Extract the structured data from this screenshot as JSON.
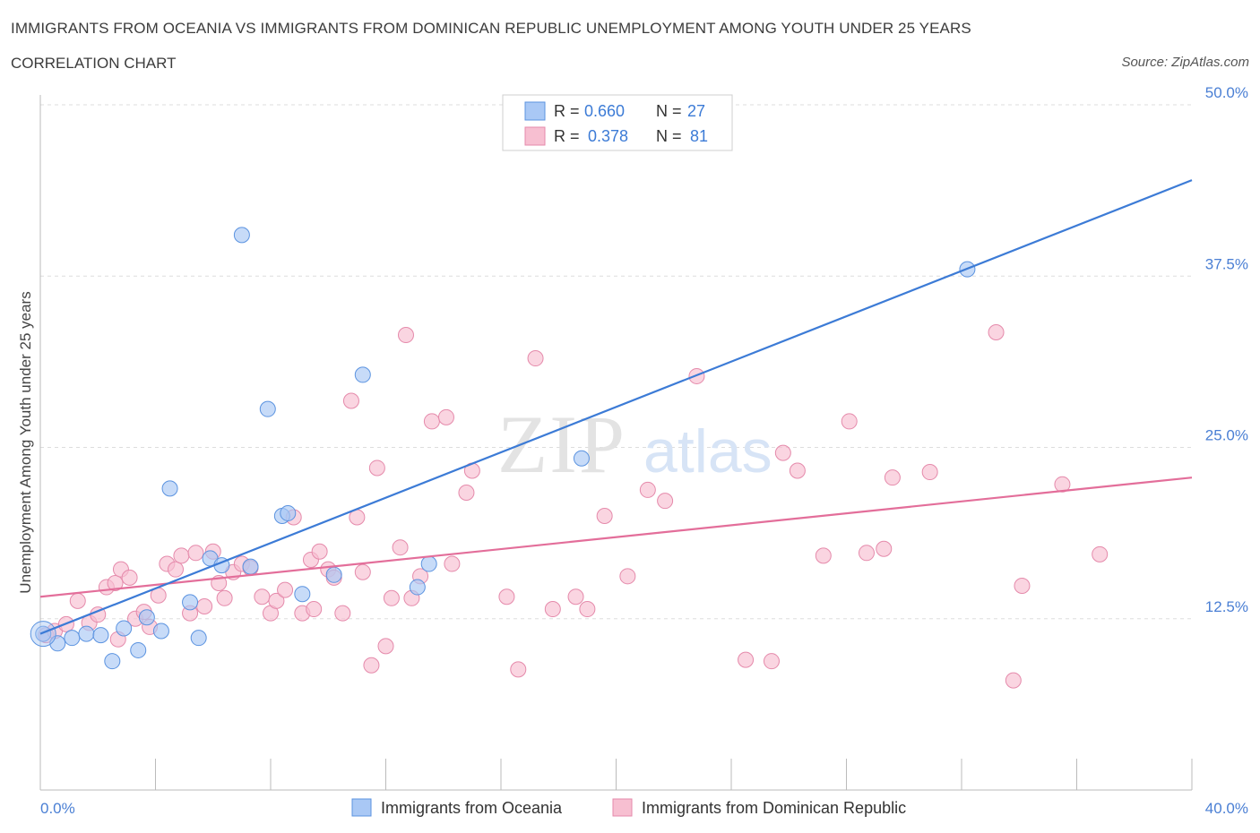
{
  "header": {
    "title": "IMMIGRANTS FROM OCEANIA VS IMMIGRANTS FROM DOMINICAN REPUBLIC UNEMPLOYMENT AMONG YOUTH UNDER 25 YEARS",
    "subtitle": "CORRELATION CHART",
    "source": "Source: ZipAtlas.com"
  },
  "watermark": {
    "zip": "ZIP",
    "atlas": "atlas"
  },
  "legend": {
    "r_label": "R =",
    "n_label": "N =",
    "rows": [
      {
        "r": "0.660",
        "n": "27"
      },
      {
        "r": "0.378",
        "n": "81"
      }
    ]
  },
  "colors": {
    "blue_fill": "#a9c8f5",
    "blue_stroke": "#5b93e0",
    "blue_line": "#3c7bd6",
    "pink_fill": "#f7bfd1",
    "pink_stroke": "#e58aab",
    "pink_line": "#e36e9a",
    "axis_text": "#4a7fd4",
    "grid": "#dddddd"
  },
  "chart_data": {
    "type": "scatter",
    "title": "IMMIGRANTS FROM OCEANIA VS IMMIGRANTS FROM DOMINICAN REPUBLIC UNEMPLOYMENT AMONG YOUTH UNDER 25 YEARS",
    "xlabel": "",
    "ylabel": "Unemployment Among Youth under 25 years",
    "xlim": [
      0,
      40
    ],
    "ylim": [
      0,
      50
    ],
    "x_tick_labels": [
      "0.0%",
      "40.0%"
    ],
    "y_ticks": [
      12.5,
      25,
      37.5,
      50
    ],
    "y_tick_labels": [
      "12.5%",
      "25.0%",
      "37.5%",
      "50.0%"
    ],
    "grid": true,
    "legend_position": "top-center",
    "series": [
      {
        "name": "Immigrants from Oceania",
        "color": "blue",
        "r": 0.66,
        "n": 27,
        "trend": [
          [
            0,
            11.4
          ],
          [
            40,
            44.5
          ]
        ],
        "points": [
          [
            0.1,
            11.4
          ],
          [
            0.6,
            10.7
          ],
          [
            1.1,
            11.1
          ],
          [
            1.6,
            11.4
          ],
          [
            2.1,
            11.3
          ],
          [
            2.5,
            9.4
          ],
          [
            2.9,
            11.8
          ],
          [
            3.4,
            10.2
          ],
          [
            3.7,
            12.6
          ],
          [
            4.2,
            11.6
          ],
          [
            4.5,
            22.0
          ],
          [
            5.2,
            13.7
          ],
          [
            5.5,
            11.1
          ],
          [
            5.9,
            16.9
          ],
          [
            6.3,
            16.4
          ],
          [
            7.0,
            40.5
          ],
          [
            7.3,
            16.3
          ],
          [
            7.9,
            27.8
          ],
          [
            8.4,
            20.0
          ],
          [
            8.6,
            20.2
          ],
          [
            9.1,
            14.3
          ],
          [
            10.2,
            15.7
          ],
          [
            11.2,
            30.3
          ],
          [
            13.1,
            14.8
          ],
          [
            13.5,
            16.5
          ],
          [
            18.8,
            24.2
          ],
          [
            32.2,
            38.0
          ]
        ]
      },
      {
        "name": "Immigrants from Dominican Republic",
        "color": "pink",
        "r": 0.378,
        "n": 81,
        "trend": [
          [
            0,
            14.1
          ],
          [
            40,
            22.8
          ]
        ],
        "points": [
          [
            0.2,
            11.3
          ],
          [
            0.5,
            11.6
          ],
          [
            0.9,
            12.1
          ],
          [
            1.3,
            13.8
          ],
          [
            1.7,
            12.2
          ],
          [
            2.0,
            12.8
          ],
          [
            2.3,
            14.8
          ],
          [
            2.6,
            15.1
          ],
          [
            2.8,
            16.1
          ],
          [
            3.1,
            15.5
          ],
          [
            3.3,
            12.5
          ],
          [
            3.6,
            13.0
          ],
          [
            3.8,
            11.9
          ],
          [
            4.1,
            14.2
          ],
          [
            4.4,
            16.5
          ],
          [
            4.7,
            16.1
          ],
          [
            4.9,
            17.1
          ],
          [
            5.2,
            12.9
          ],
          [
            5.4,
            17.3
          ],
          [
            5.7,
            13.4
          ],
          [
            6.0,
            17.4
          ],
          [
            6.2,
            15.1
          ],
          [
            6.4,
            14.0
          ],
          [
            6.7,
            15.9
          ],
          [
            7.0,
            16.5
          ],
          [
            7.3,
            16.2
          ],
          [
            7.7,
            14.1
          ],
          [
            8.0,
            12.9
          ],
          [
            8.2,
            13.8
          ],
          [
            8.5,
            14.6
          ],
          [
            8.8,
            19.9
          ],
          [
            9.1,
            12.9
          ],
          [
            9.4,
            16.8
          ],
          [
            9.7,
            17.4
          ],
          [
            10.0,
            16.1
          ],
          [
            10.2,
            15.5
          ],
          [
            10.5,
            12.9
          ],
          [
            10.8,
            28.4
          ],
          [
            11.0,
            19.9
          ],
          [
            11.2,
            15.9
          ],
          [
            11.5,
            9.1
          ],
          [
            11.7,
            23.5
          ],
          [
            12.0,
            10.5
          ],
          [
            12.2,
            14.0
          ],
          [
            12.5,
            17.7
          ],
          [
            12.7,
            33.2
          ],
          [
            12.9,
            14.0
          ],
          [
            13.2,
            15.6
          ],
          [
            13.6,
            26.9
          ],
          [
            14.1,
            27.2
          ],
          [
            14.3,
            16.5
          ],
          [
            14.8,
            21.7
          ],
          [
            15.0,
            23.3
          ],
          [
            16.2,
            14.1
          ],
          [
            16.6,
            8.8
          ],
          [
            17.2,
            31.5
          ],
          [
            17.8,
            13.2
          ],
          [
            18.6,
            14.1
          ],
          [
            19.0,
            13.2
          ],
          [
            19.6,
            20.0
          ],
          [
            20.4,
            15.6
          ],
          [
            21.1,
            21.9
          ],
          [
            21.7,
            21.1
          ],
          [
            22.8,
            30.2
          ],
          [
            24.5,
            9.5
          ],
          [
            25.4,
            9.4
          ],
          [
            25.8,
            24.6
          ],
          [
            26.3,
            23.3
          ],
          [
            27.2,
            17.1
          ],
          [
            28.1,
            26.9
          ],
          [
            28.7,
            17.3
          ],
          [
            29.3,
            17.6
          ],
          [
            29.6,
            22.8
          ],
          [
            30.9,
            23.2
          ],
          [
            33.2,
            33.4
          ],
          [
            33.8,
            8.0
          ],
          [
            34.1,
            14.9
          ],
          [
            35.5,
            22.3
          ],
          [
            36.8,
            17.2
          ],
          [
            2.7,
            11.0
          ],
          [
            9.5,
            13.2
          ]
        ]
      }
    ]
  }
}
